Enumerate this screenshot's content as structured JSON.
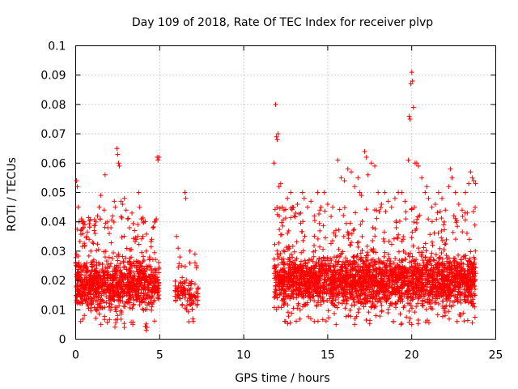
{
  "chart_data": {
    "type": "scatter",
    "title": "Day 109 of 2018, Rate Of TEC Index for receiver plvp",
    "xlabel": "GPS time / hours",
    "ylabel": "ROTI / TECUs",
    "xlim": [
      0,
      25
    ],
    "ylim": [
      0,
      0.1
    ],
    "x_ticks": [
      0,
      5,
      10,
      15,
      20,
      25
    ],
    "y_ticks": [
      0,
      0.01,
      0.02,
      0.03,
      0.04,
      0.05,
      0.06,
      0.07,
      0.08,
      0.09,
      0.1
    ],
    "x_tick_labels": [
      "0",
      "5",
      "10",
      "15",
      "20",
      "25"
    ],
    "y_tick_labels": [
      "0",
      "0.01",
      "0.02",
      "0.03",
      "0.04",
      "0.05",
      "0.06",
      "0.07",
      "0.08",
      "0.09",
      "0.1"
    ],
    "grid": true,
    "marker": "plus",
    "color": "#ff0000",
    "series": [
      {
        "name": "ROTI",
        "points": [
          [
            0.05,
            0.054
          ],
          [
            0.1,
            0.052
          ],
          [
            0.15,
            0.045
          ],
          [
            0.2,
            0.04
          ],
          [
            0.3,
            0.037
          ],
          [
            0.35,
            0.041
          ],
          [
            0.4,
            0.04
          ],
          [
            0.5,
            0.04
          ],
          [
            0.55,
            0.039
          ],
          [
            0.65,
            0.035
          ],
          [
            0.8,
            0.034
          ],
          [
            0.9,
            0.03
          ],
          [
            1.0,
            0.033
          ],
          [
            1.1,
            0.037
          ],
          [
            1.2,
            0.04
          ],
          [
            1.3,
            0.042
          ],
          [
            1.4,
            0.045
          ],
          [
            1.5,
            0.049
          ],
          [
            1.7,
            0.044
          ],
          [
            1.75,
            0.056
          ],
          [
            1.9,
            0.04
          ],
          [
            2.0,
            0.036
          ],
          [
            2.1,
            0.038
          ],
          [
            2.2,
            0.042
          ],
          [
            2.3,
            0.047
          ],
          [
            2.35,
            0.045
          ],
          [
            2.45,
            0.065
          ],
          [
            2.5,
            0.063
          ],
          [
            2.55,
            0.06
          ],
          [
            2.6,
            0.059
          ],
          [
            2.7,
            0.047
          ],
          [
            2.8,
            0.046
          ],
          [
            2.9,
            0.048
          ],
          [
            3.0,
            0.044
          ],
          [
            3.1,
            0.041
          ],
          [
            3.2,
            0.038
          ],
          [
            3.35,
            0.043
          ],
          [
            3.5,
            0.037
          ],
          [
            3.6,
            0.034
          ],
          [
            3.75,
            0.05
          ],
          [
            3.8,
            0.045
          ],
          [
            3.9,
            0.041
          ],
          [
            4.0,
            0.035
          ],
          [
            4.2,
            0.03
          ],
          [
            4.4,
            0.028
          ],
          [
            4.6,
            0.038
          ],
          [
            4.7,
            0.04
          ],
          [
            4.8,
            0.041
          ],
          [
            4.85,
            0.062
          ],
          [
            4.9,
            0.061
          ],
          [
            4.95,
            0.062
          ],
          [
            2.9,
            0.004
          ],
          [
            4.2,
            0.003
          ],
          [
            4.25,
            0.004
          ],
          [
            1.5,
            0.005
          ],
          [
            0.3,
            0.006
          ],
          [
            3.4,
            0.005
          ],
          [
            6.0,
            0.035
          ],
          [
            6.1,
            0.031
          ],
          [
            6.2,
            0.028
          ],
          [
            6.3,
            0.025
          ],
          [
            6.5,
            0.05
          ],
          [
            6.55,
            0.048
          ],
          [
            6.8,
            0.03
          ],
          [
            7.1,
            0.029
          ],
          [
            7.2,
            0.025
          ],
          [
            6.9,
            0.012
          ],
          [
            7.0,
            0.006
          ],
          [
            6.6,
            0.01
          ],
          [
            11.8,
            0.06
          ],
          [
            11.9,
            0.08
          ],
          [
            11.95,
            0.069
          ],
          [
            12.0,
            0.068
          ],
          [
            12.05,
            0.07
          ],
          [
            12.1,
            0.052
          ],
          [
            12.2,
            0.053
          ],
          [
            12.3,
            0.045
          ],
          [
            12.4,
            0.044
          ],
          [
            12.6,
            0.048
          ],
          [
            12.8,
            0.05
          ],
          [
            12.9,
            0.045
          ],
          [
            13.0,
            0.042
          ],
          [
            13.2,
            0.046
          ],
          [
            13.4,
            0.043
          ],
          [
            13.5,
            0.05
          ],
          [
            13.6,
            0.048
          ],
          [
            13.8,
            0.045
          ],
          [
            14.0,
            0.047
          ],
          [
            14.2,
            0.042
          ],
          [
            14.4,
            0.05
          ],
          [
            14.6,
            0.045
          ],
          [
            14.8,
            0.05
          ],
          [
            15.0,
            0.046
          ],
          [
            15.3,
            0.045
          ],
          [
            15.6,
            0.061
          ],
          [
            15.8,
            0.055
          ],
          [
            16.0,
            0.054
          ],
          [
            16.2,
            0.058
          ],
          [
            16.4,
            0.057
          ],
          [
            16.6,
            0.052
          ],
          [
            16.8,
            0.055
          ],
          [
            16.9,
            0.05
          ],
          [
            17.0,
            0.049
          ],
          [
            17.2,
            0.064
          ],
          [
            17.3,
            0.062
          ],
          [
            17.4,
            0.056
          ],
          [
            17.6,
            0.06
          ],
          [
            17.8,
            0.059
          ],
          [
            18.0,
            0.05
          ],
          [
            18.2,
            0.046
          ],
          [
            18.4,
            0.05
          ],
          [
            18.6,
            0.047
          ],
          [
            18.8,
            0.045
          ],
          [
            19.0,
            0.048
          ],
          [
            19.2,
            0.05
          ],
          [
            19.4,
            0.05
          ],
          [
            19.6,
            0.047
          ],
          [
            19.8,
            0.061
          ],
          [
            19.85,
            0.076
          ],
          [
            19.9,
            0.075
          ],
          [
            19.95,
            0.087
          ],
          [
            20.0,
            0.091
          ],
          [
            20.05,
            0.088
          ],
          [
            20.1,
            0.079
          ],
          [
            20.2,
            0.06
          ],
          [
            20.3,
            0.06
          ],
          [
            20.4,
            0.059
          ],
          [
            20.6,
            0.055
          ],
          [
            20.8,
            0.05
          ],
          [
            20.9,
            0.052
          ],
          [
            21.0,
            0.048
          ],
          [
            21.2,
            0.045
          ],
          [
            21.4,
            0.046
          ],
          [
            21.6,
            0.05
          ],
          [
            21.8,
            0.048
          ],
          [
            22.0,
            0.044
          ],
          [
            22.2,
            0.052
          ],
          [
            22.3,
            0.058
          ],
          [
            22.4,
            0.055
          ],
          [
            22.6,
            0.05
          ],
          [
            22.8,
            0.046
          ],
          [
            23.0,
            0.044
          ],
          [
            23.2,
            0.05
          ],
          [
            23.4,
            0.053
          ],
          [
            23.5,
            0.057
          ],
          [
            23.6,
            0.055
          ],
          [
            23.7,
            0.054
          ],
          [
            23.8,
            0.053
          ],
          [
            20.0,
            0.005
          ],
          [
            19.9,
            0.007
          ],
          [
            15.5,
            0.005
          ],
          [
            14.2,
            0.006
          ],
          [
            16.6,
            0.005
          ],
          [
            18.9,
            0.006
          ],
          [
            22.7,
            0.006
          ],
          [
            12.5,
            0.006
          ]
        ]
      }
    ],
    "dense_bands": [
      {
        "x_range": [
          0.0,
          4.95
        ],
        "y_core": [
          0.007,
          0.03
        ],
        "y_spread": [
          0.004,
          0.042
        ],
        "points": 1000
      },
      {
        "x_range": [
          5.9,
          7.3
        ],
        "y_core": [
          0.009,
          0.022
        ],
        "y_spread": [
          0.005,
          0.03
        ],
        "points": 110
      },
      {
        "x_range": [
          11.8,
          23.8
        ],
        "y_core": [
          0.008,
          0.032
        ],
        "y_spread": [
          0.005,
          0.045
        ],
        "points": 2600
      }
    ]
  }
}
